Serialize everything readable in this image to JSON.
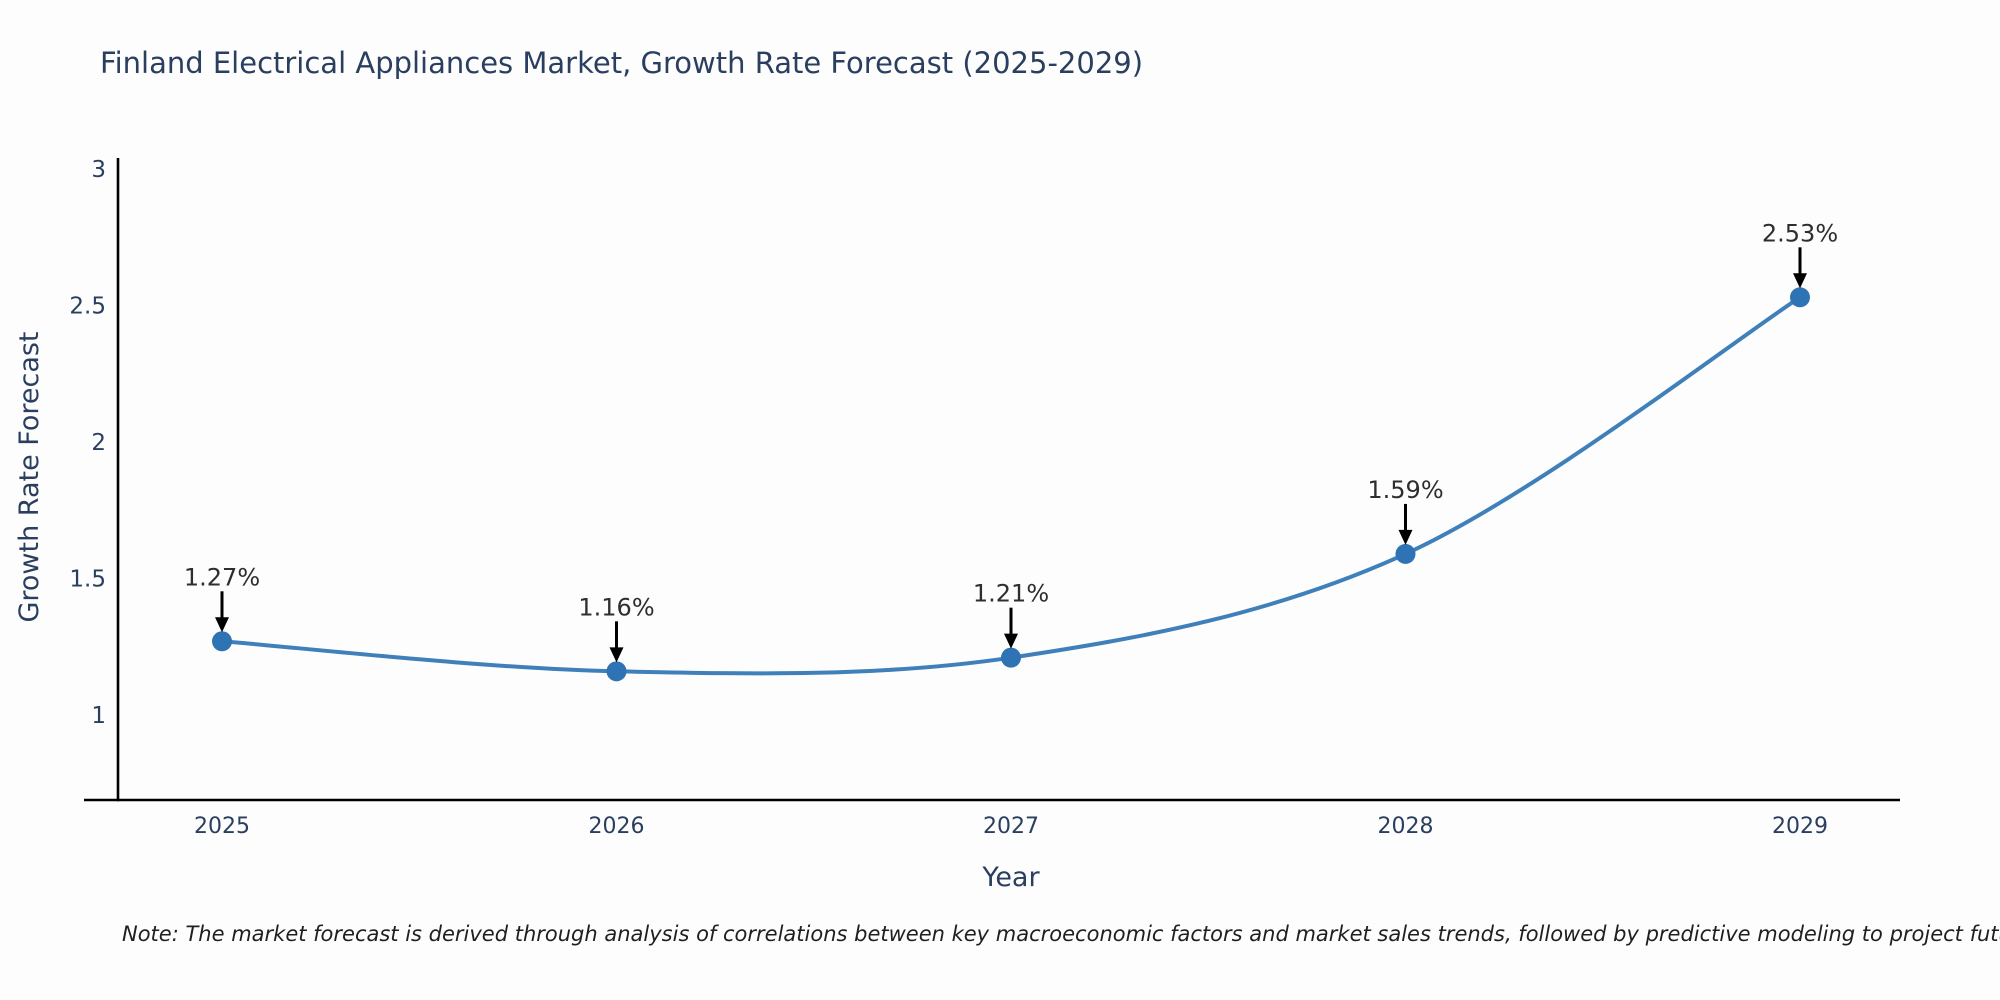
{
  "chart_data": {
    "type": "line",
    "title": "Finland Electrical Appliances Market, Growth Rate Forecast (2025-2029)",
    "xlabel": "Year",
    "ylabel": "Growth Rate Forecast",
    "categories": [
      "2025",
      "2026",
      "2027",
      "2028",
      "2029"
    ],
    "series": [
      {
        "name": "Growth Rate Forecast",
        "values": [
          1.27,
          1.16,
          1.21,
          1.59,
          2.53
        ],
        "point_labels": [
          "1.27%",
          "1.16%",
          "1.21%",
          "1.59%",
          "2.53%"
        ]
      }
    ],
    "yticks": [
      "1",
      "1.5",
      "2",
      "2.5",
      "3"
    ],
    "ylim": [
      0.69,
      3.05
    ],
    "grid": false,
    "legend_position": "none",
    "smooth_spline": true,
    "colors": {
      "line": "#4080ba",
      "marker": "#2e73b4",
      "axis": "#000000",
      "axis_text": "#2a3f5f",
      "annotation_text": "#2e2e2e",
      "arrow": "#000000",
      "background": "#fdfdfd"
    },
    "note": "Note: The market forecast is derived through analysis of correlations between key macroeconomic factors and market sales trends, followed by predictive modeling to project future sales"
  }
}
